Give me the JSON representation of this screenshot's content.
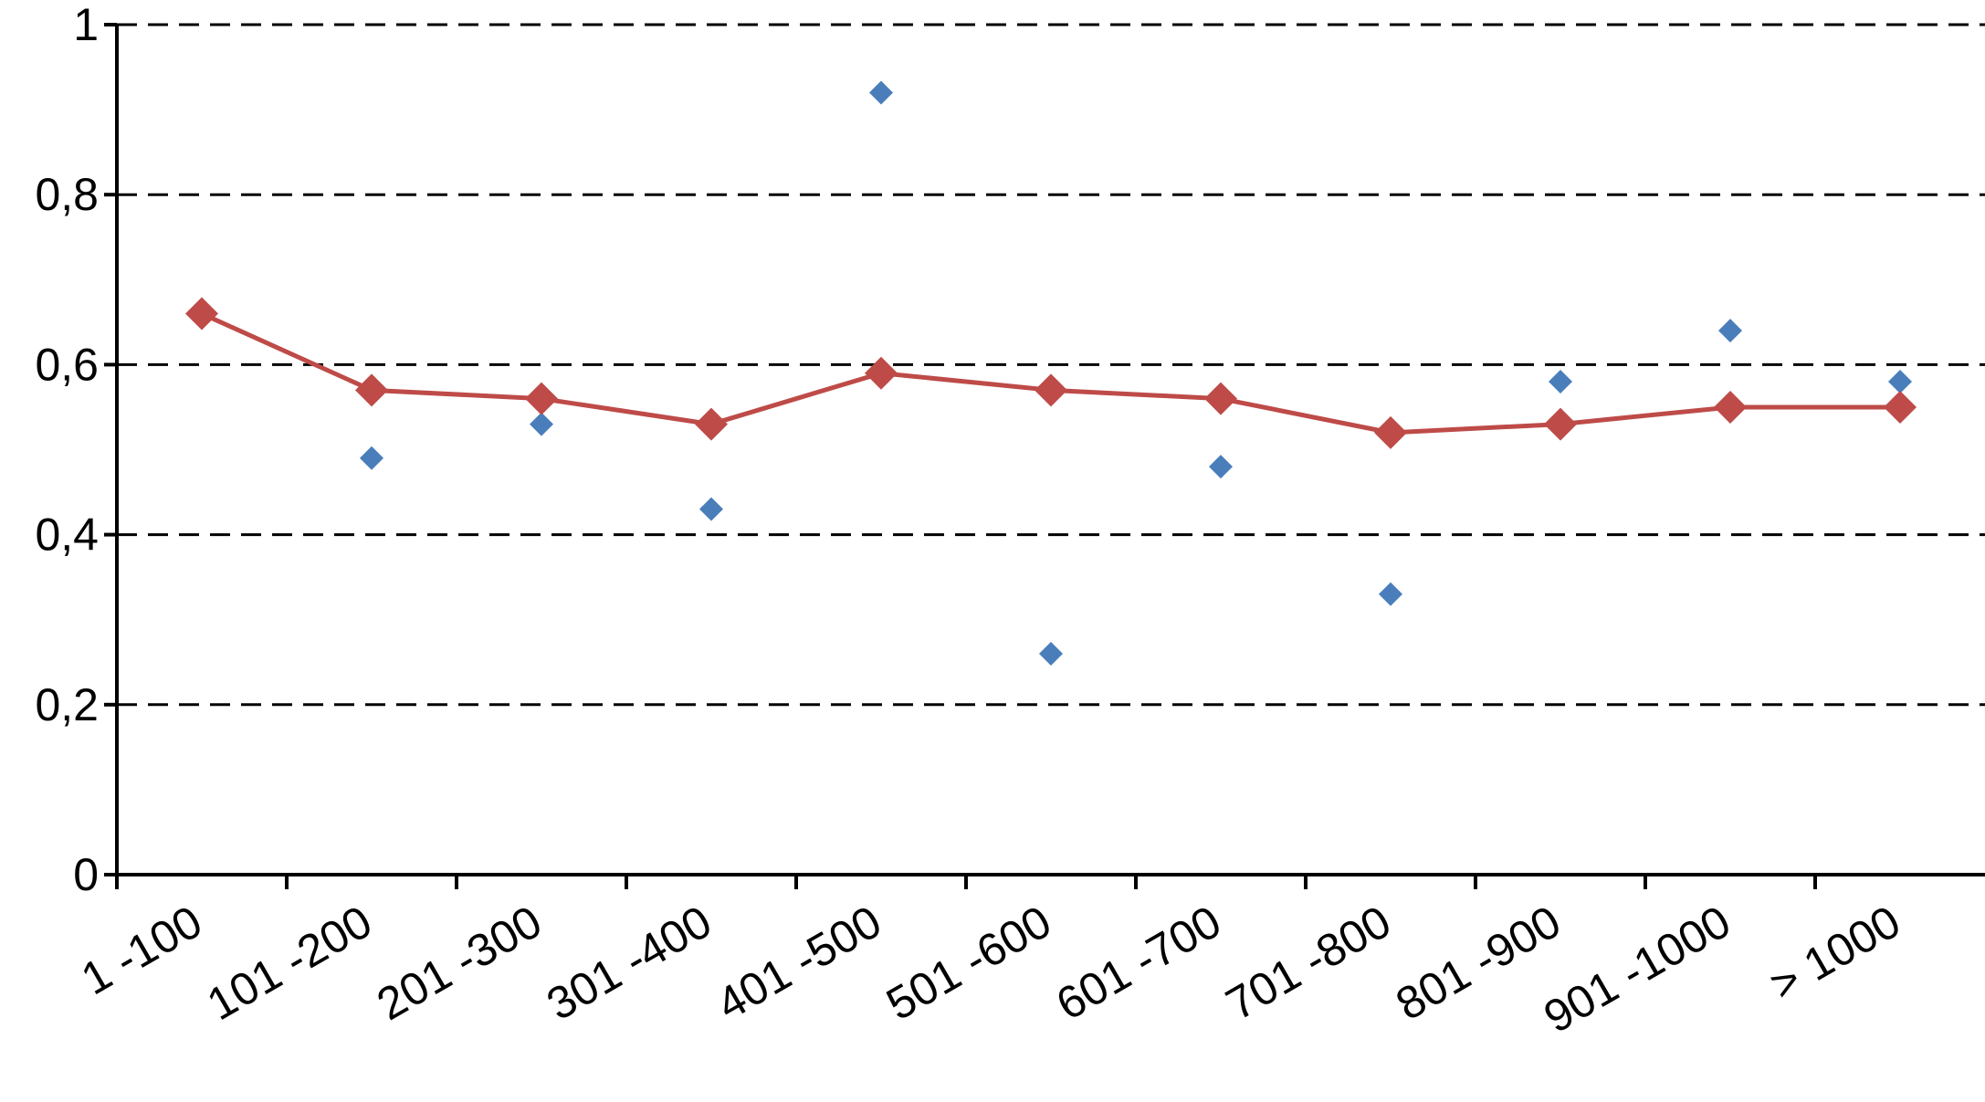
{
  "chart_data": {
    "type": "line",
    "title": "",
    "xlabel": "",
    "ylabel": "",
    "categories": [
      "1 -100",
      "101 -200",
      "201 -300",
      "301 -400",
      "401 -500",
      "501 -600",
      "601 -700",
      "701 -800",
      "801 -900",
      "901 -1000",
      "> 1000"
    ],
    "ylim": [
      0,
      1
    ],
    "yticks": [
      0,
      0.2,
      0.4,
      0.6,
      0.8,
      1
    ],
    "ytick_labels": [
      "0",
      "0,2",
      "0,4",
      "0,6",
      "0,8",
      "1"
    ],
    "grid": "horizontal dashed",
    "legend": "none",
    "series": [
      {
        "type": "scatter",
        "marker": "diamond",
        "color": "#4a7ebb",
        "values": [
          null,
          0.49,
          0.53,
          0.43,
          0.92,
          0.26,
          0.48,
          0.33,
          0.58,
          0.64,
          0.58
        ]
      },
      {
        "type": "line",
        "marker": "diamond",
        "color": "#be4b48",
        "values": [
          0.66,
          0.57,
          0.56,
          0.53,
          0.59,
          0.57,
          0.56,
          0.52,
          0.53,
          0.55,
          0.55
        ]
      }
    ]
  }
}
